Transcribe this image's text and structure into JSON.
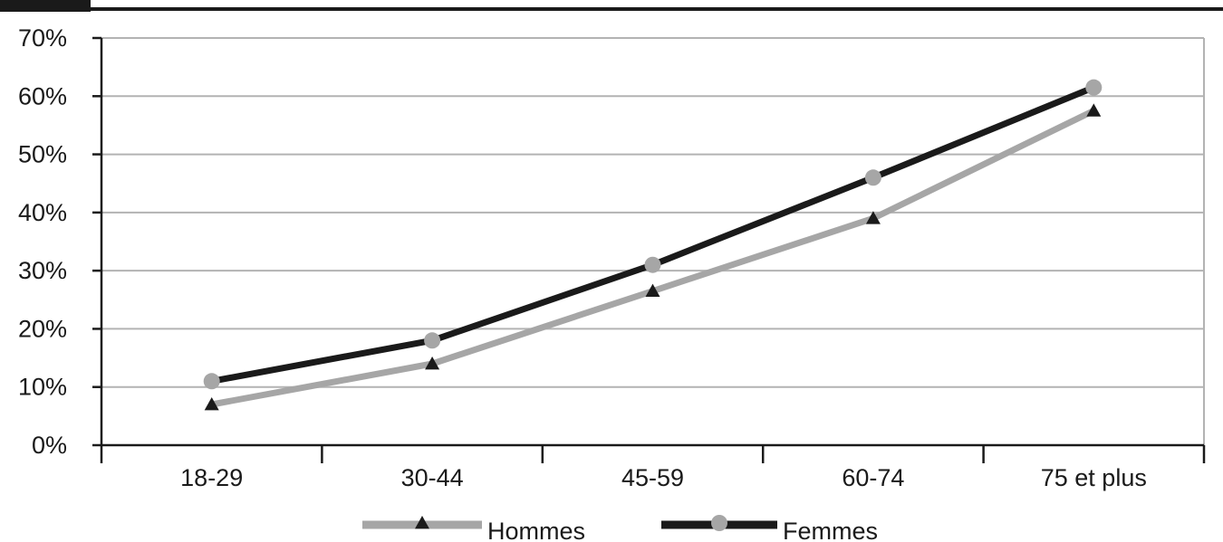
{
  "chart_data": {
    "type": "line",
    "title": "",
    "xlabel": "",
    "ylabel": "",
    "categories": [
      "18-29",
      "30-44",
      "45-59",
      "60-74",
      "75 et plus"
    ],
    "ylim": [
      0,
      70
    ],
    "yticks": [
      0,
      10,
      20,
      30,
      40,
      50,
      60,
      70
    ],
    "ytick_labels": [
      "0%",
      "10%",
      "20%",
      "30%",
      "40%",
      "50%",
      "60%",
      "70%"
    ],
    "grid": true,
    "legend_position": "bottom",
    "series": [
      {
        "name": "Hommes",
        "values": [
          7,
          14,
          26.5,
          39,
          57.5
        ],
        "color": "#a6a6a6",
        "marker": "triangle",
        "marker_color": "#1a1a1a"
      },
      {
        "name": "Femmes",
        "values": [
          11,
          18,
          31,
          46,
          61.5
        ],
        "color": "#1a1a1a",
        "marker": "circle",
        "marker_color": "#a6a6a6"
      }
    ]
  }
}
